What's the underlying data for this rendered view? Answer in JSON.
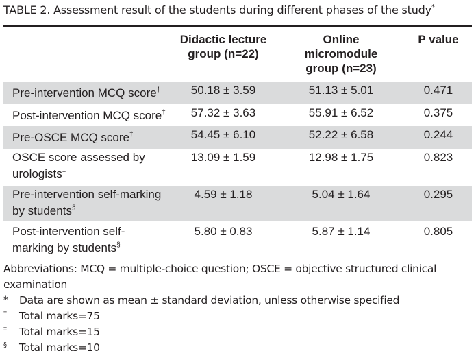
{
  "caption": {
    "text": "TABLE 2. Assessment result of the students during different phases of the study",
    "marker": "*"
  },
  "header": {
    "col2": [
      "Didactic lecture",
      "group (n=22)"
    ],
    "col3": [
      "Online",
      "micromodule",
      "group (n=23)"
    ],
    "col4": "P value"
  },
  "rows": [
    {
      "label": [
        "Pre-intervention MCQ score"
      ],
      "mark": "†",
      "g1": "50.18 ± 3.59",
      "g2": "51.13 ± 5.01",
      "p": "0.471"
    },
    {
      "label": [
        "Post-intervention MCQ score"
      ],
      "mark": "†",
      "g1": "57.32 ± 3.63",
      "g2": "55.91 ± 6.52",
      "p": "0.375"
    },
    {
      "label": [
        "Pre-OSCE MCQ score"
      ],
      "mark": "†",
      "g1": "54.45 ± 6.10",
      "g2": "52.22 ± 6.58",
      "p": "0.244"
    },
    {
      "label": [
        "OSCE score assessed by",
        "urologists"
      ],
      "mark": "‡",
      "g1": "13.09 ± 1.59",
      "g2": "12.98 ± 1.75",
      "p": "0.823"
    },
    {
      "label": [
        "Pre-intervention self-marking",
        "by students"
      ],
      "mark": "§",
      "g1": "4.59 ± 1.18",
      "g2": "5.04 ± 1.64",
      "p": "0.295"
    },
    {
      "label": [
        "Post-intervention self-",
        "marking by students"
      ],
      "mark": "§",
      "g1": "5.80 ± 0.83",
      "g2": "5.87 ± 1.14",
      "p": "0.805"
    }
  ],
  "footnotes": {
    "abbreviations": [
      "Abbreviations: MCQ = multiple-choice question; OSCE = objective structured clinical",
      "examination"
    ],
    "notes": [
      {
        "symbol": "*",
        "text": "Data are shown as mean ± standard deviation, unless otherwise specified"
      },
      {
        "symbol": "†",
        "text": "Total marks=75"
      },
      {
        "symbol": "‡",
        "text": "Total marks=15"
      },
      {
        "symbol": "§",
        "text": "Total marks=10"
      }
    ]
  }
}
